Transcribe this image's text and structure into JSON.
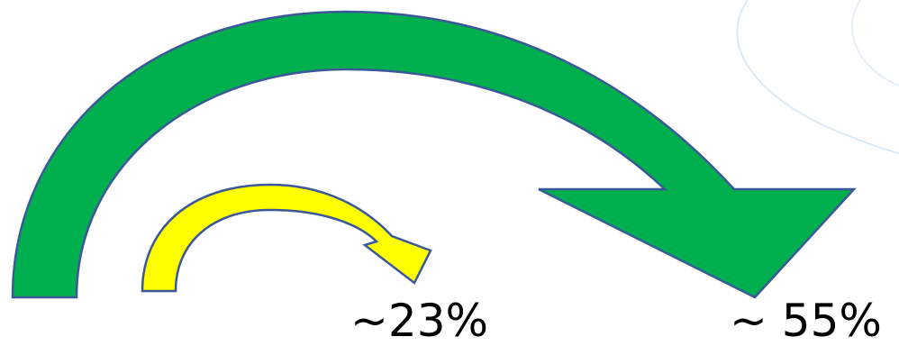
{
  "colors": {
    "large_arrow_fill": "#00B04F",
    "small_arrow_fill": "#FFFF00",
    "arrow_outline": "#3B5998",
    "background_swirl": "#DCE9F4",
    "label_text": "#000000"
  },
  "labels": {
    "small_arrow_value": "~23%",
    "large_arrow_value": "~ 55%"
  }
}
